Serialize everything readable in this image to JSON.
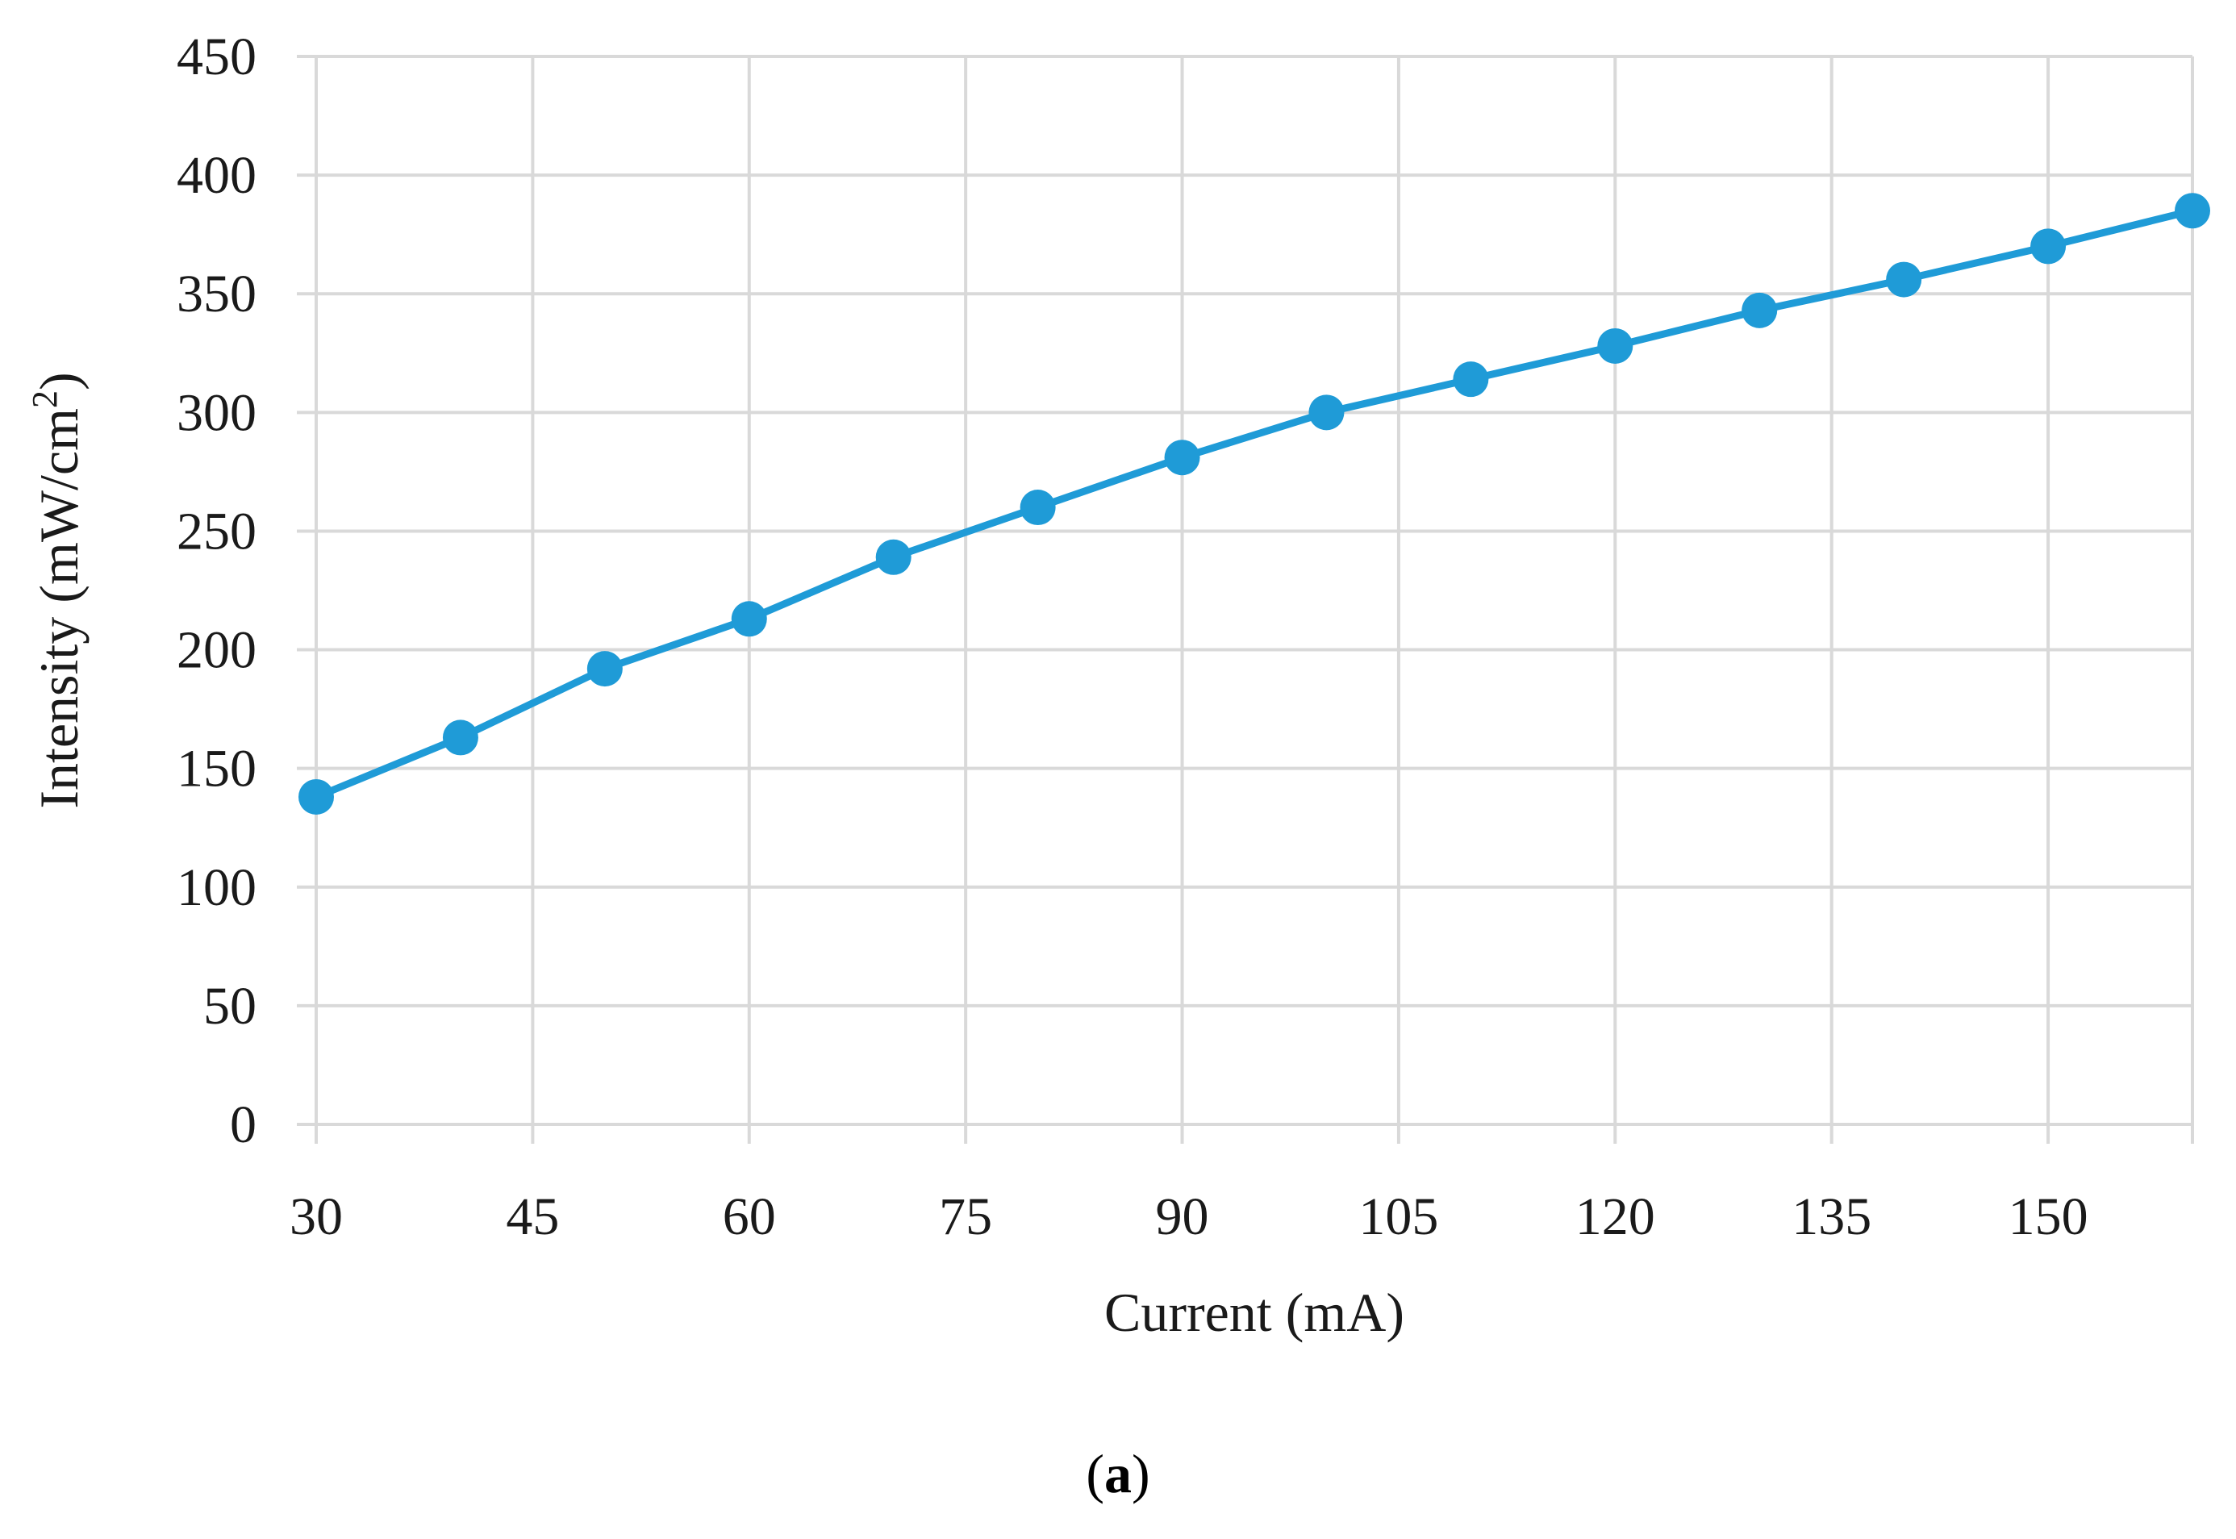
{
  "chart_data": {
    "type": "line",
    "xlabel": "Current (mA)",
    "ylabel_main": "Intensity (mW/cm",
    "ylabel_sup": "2",
    "ylabel_close": ")",
    "xlim": [
      30,
      160
    ],
    "ylim": [
      0,
      450
    ],
    "x_ticks": [
      30,
      45,
      60,
      75,
      90,
      105,
      120,
      135,
      150
    ],
    "y_ticks": [
      0,
      50,
      100,
      150,
      200,
      250,
      300,
      350,
      400,
      450
    ],
    "grid": true,
    "legend": "none",
    "series": [
      {
        "color": "#1f9bd7",
        "x": [
          30,
          40,
          50,
          60,
          70,
          80,
          90,
          100,
          110,
          120,
          130,
          140,
          150,
          160
        ],
        "y": [
          138,
          163,
          192,
          213,
          239,
          260,
          281,
          300,
          314,
          328,
          343,
          356,
          370,
          385
        ]
      }
    ]
  },
  "panel_label_open": "(",
  "panel_label_letter": "a",
  "panel_label_close": ")"
}
